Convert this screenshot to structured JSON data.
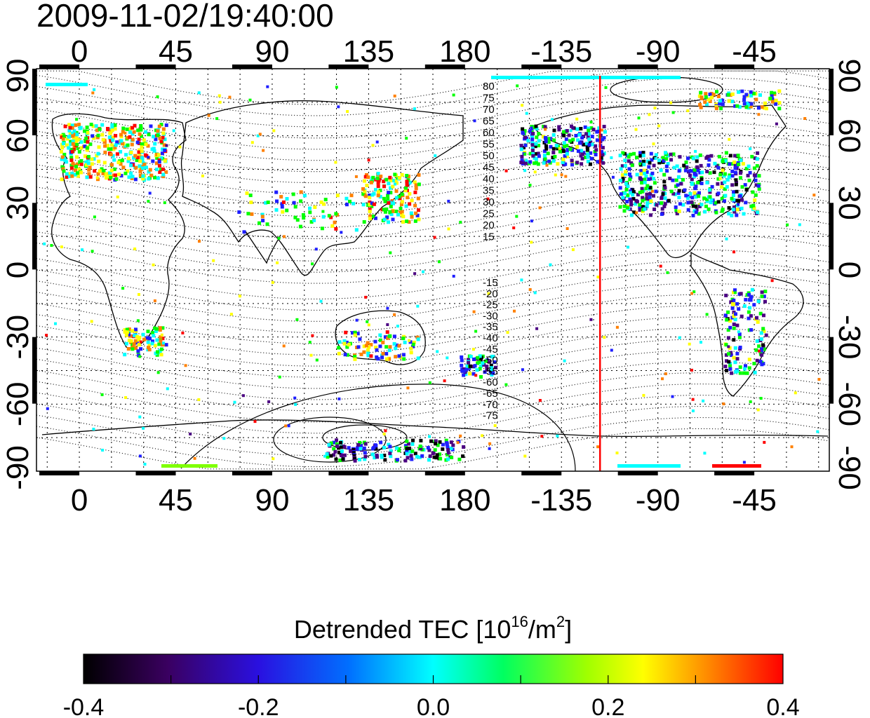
{
  "title": "2009-11-02/19:40:00",
  "map": {
    "top_lon_ticks": [
      "0",
      "45",
      "90",
      "135",
      "180",
      "-135",
      "-90",
      "-45"
    ],
    "bottom_lon_ticks": [
      "0",
      "45",
      "90",
      "135",
      "180",
      "-135",
      "-90",
      "-45"
    ],
    "left_lat_ticks": [
      "90",
      "60",
      "30",
      "0",
      "-30",
      "-60",
      "-90"
    ],
    "right_lat_ticks": [
      "90",
      "60",
      "30",
      "0",
      "-30",
      "-60",
      "-90"
    ],
    "magnetic_lat_labels_north": [
      "80",
      "75",
      "70",
      "65",
      "60",
      "55",
      "50",
      "45",
      "40",
      "35",
      "30",
      "25",
      "20",
      "15"
    ],
    "magnetic_lat_labels_south": [
      "-15",
      "-20",
      "-25",
      "-30",
      "-35",
      "-40",
      "-45",
      "-50",
      "-55",
      "-60",
      "-65",
      "-70",
      "-75"
    ],
    "marker_longitude": -117,
    "marker_color": "#ff0000",
    "background_color": "#ffffff"
  },
  "colorbar": {
    "label_prefix": "Detrended TEC  [10",
    "label_exp1": "16",
    "label_mid": "/m",
    "label_exp2": "2",
    "label_suffix": "]",
    "tick_labels": [
      "-0.4",
      "-0.2",
      "0.0",
      "0.2",
      "0.4"
    ],
    "min": -0.4,
    "max": 0.4,
    "colors": [
      "#000000",
      "#4b0082",
      "#1e1eff",
      "#00ffff",
      "#00ff00",
      "#ffff00",
      "#ff8000",
      "#ff0000"
    ]
  }
}
